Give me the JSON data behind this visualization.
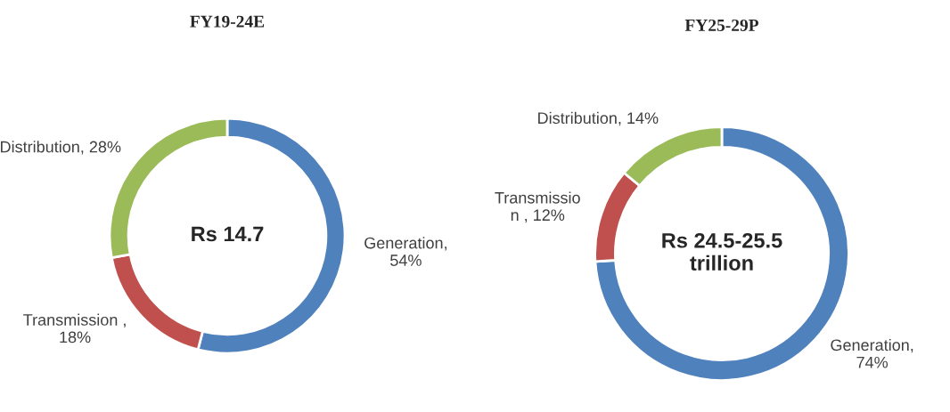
{
  "chart_data": [
    {
      "type": "donut",
      "title": "FY19-24E",
      "categories": [
        "Generation,\n54%",
        "Transmission ,\n18%",
        "Distribution, 28%"
      ],
      "values": [
        54,
        18,
        28
      ],
      "colors": [
        "#4f81bd",
        "#c0504d",
        "#9bbb59"
      ],
      "annotations": [
        "Rs 14.7"
      ]
    },
    {
      "type": "donut",
      "title": "FY25-29P",
      "categories": [
        "Generation,\n74%",
        "Transmissio\nn , 12%",
        "Distribution, 14%"
      ],
      "values": [
        74,
        12,
        14
      ],
      "colors": [
        "#4f81bd",
        "#c0504d",
        "#9bbb59"
      ],
      "annotations": [
        "Rs 24.5-25.5\ntrillion"
      ]
    }
  ]
}
